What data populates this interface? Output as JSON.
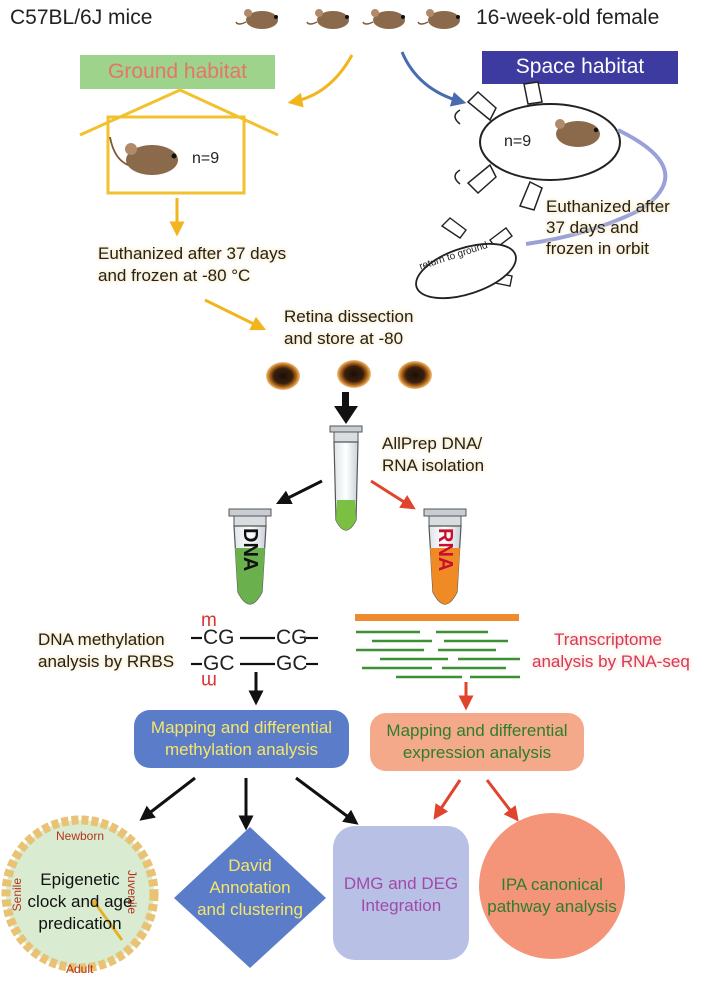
{
  "header": {
    "strain": "C57BL/6J mice",
    "description": "16-week-old female"
  },
  "ground": {
    "label": "Ground habitat",
    "n": "n=9",
    "euthanize_line1": "Euthanized after 37 days",
    "euthanize_line2": "and frozen at -80 °C",
    "color": "#f2c12e",
    "label_bg": "#9dd38a",
    "label_fg": "#e8736b"
  },
  "space": {
    "label": "Space habitat",
    "n": "n=9",
    "euthanize_line1": "Euthanized after",
    "euthanize_line2": "37 days and",
    "euthanize_line3": "frozen in orbit",
    "return_label": "return to ground",
    "color": "#4a6bb0",
    "label_bg": "#3d3aa0"
  },
  "retina": {
    "line1": "Retina dissection",
    "line2": "and store at -80"
  },
  "isolation": {
    "line1": "AllPrep DNA/",
    "line2": "RNA isolation"
  },
  "tubes": {
    "dna_label": "DNA",
    "rna_label": "RNA",
    "dna_color": "#6ab04c",
    "rna_color": "#f08a24"
  },
  "methylation": {
    "line1": "DNA methylation",
    "line2": "analysis by RRBS",
    "mark": "m",
    "top_strand": [
      "CG",
      "CG"
    ],
    "bottom_strand": [
      "GC",
      "GC"
    ]
  },
  "transcriptome": {
    "line1": "Transcriptome",
    "line2": "analysis by RNA-seq",
    "color": "#d6337a"
  },
  "mapping_methylation": {
    "line1": "Mapping and differential",
    "line2": "methylation analysis",
    "bg": "#5b7cc8",
    "fg": "#f5e66a"
  },
  "mapping_expression": {
    "line1": "Mapping and differential",
    "line2": "expression analysis",
    "bg": "#f4a98b",
    "fg": "#2e7d2e"
  },
  "outputs": {
    "clock": {
      "line1": "Epigenetic",
      "line2": "clock and age",
      "line3": "predication",
      "newborn": "Newborn",
      "juvenile": "Juvenile",
      "adult": "Adult",
      "senile": "Senile"
    },
    "david": {
      "line1": "David",
      "line2": "Annotation",
      "line3": "and clustering"
    },
    "integration": {
      "line1": "DMG and DEG",
      "line2": "Integration"
    },
    "ipa": {
      "line1": "IPA canonical",
      "line2": "pathway analysis"
    }
  }
}
